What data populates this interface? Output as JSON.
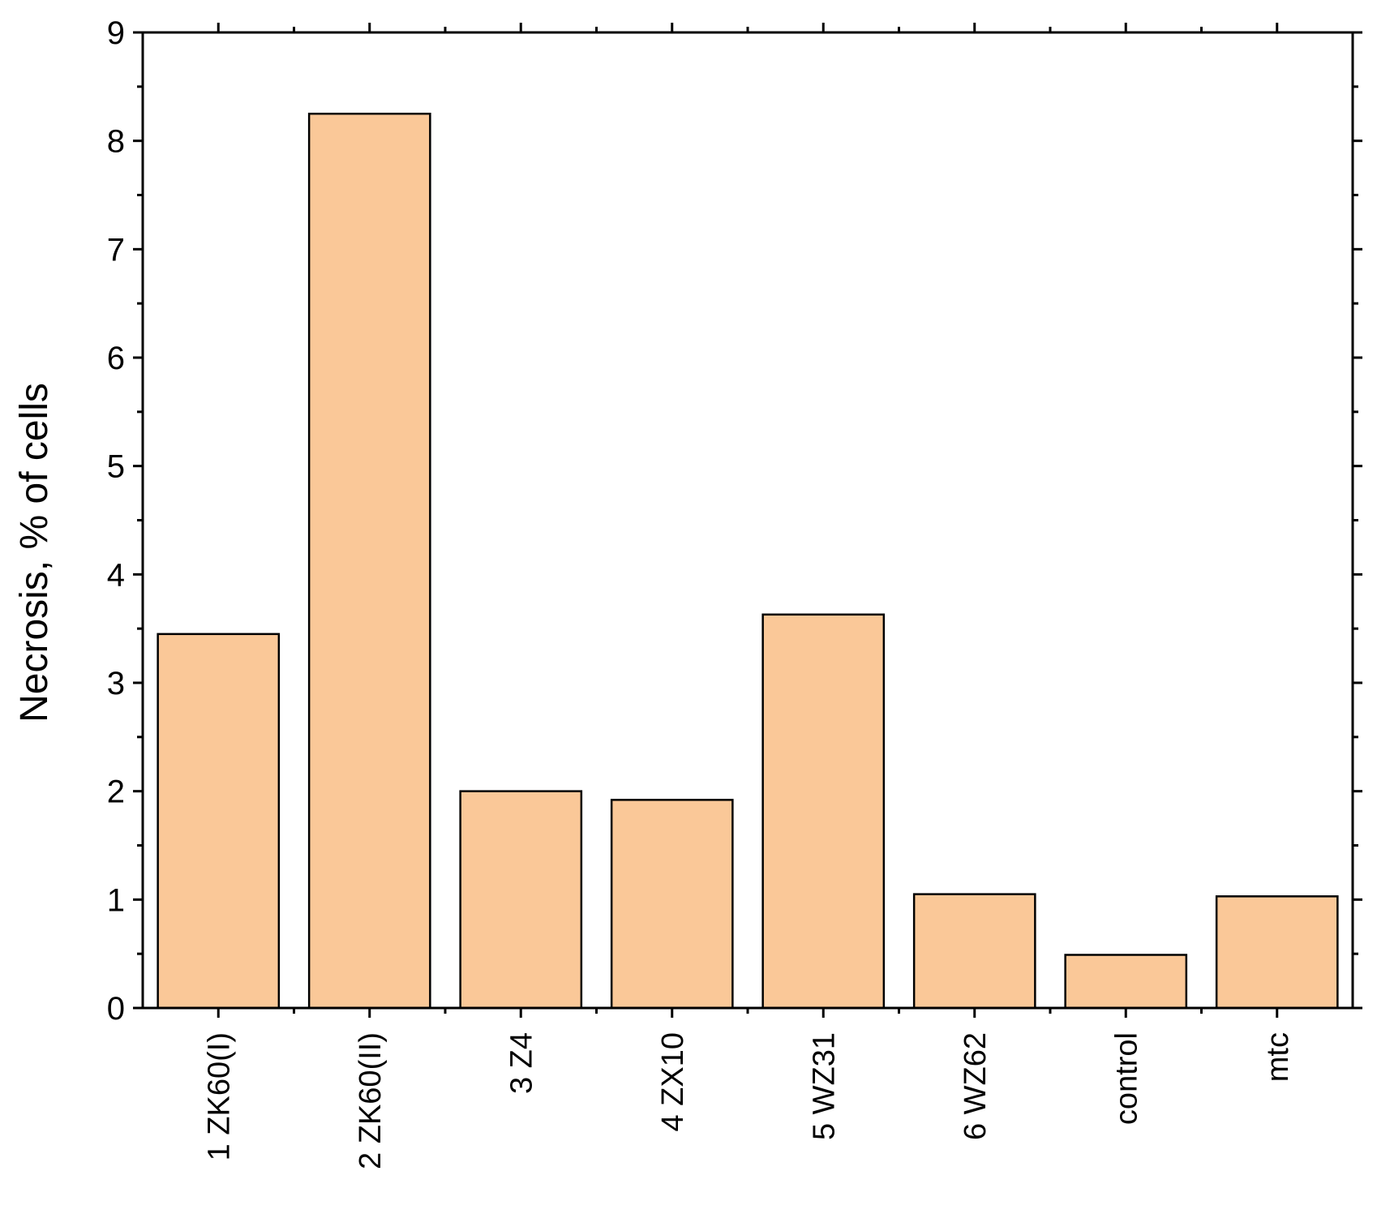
{
  "chart_data": {
    "type": "bar",
    "categories": [
      "1  ZK60(I)",
      "2  ZK60(II)",
      "3  Z4",
      "4  ZX10",
      "5  WZ31",
      "6 WZ62",
      "control",
      "mtc"
    ],
    "values": [
      3.45,
      8.25,
      2.0,
      1.92,
      3.63,
      1.05,
      0.49,
      1.03
    ],
    "title": "",
    "xlabel": "",
    "ylabel": "Necrosis,  % of cells",
    "ylim": [
      0,
      9
    ],
    "yticks": [
      "0",
      "1",
      "2",
      "3",
      "4",
      "5",
      "6",
      "7",
      "8",
      "9"
    ],
    "grid": false,
    "legend": "none",
    "bar_color": "#fac898",
    "edge_color": "#000000"
  }
}
